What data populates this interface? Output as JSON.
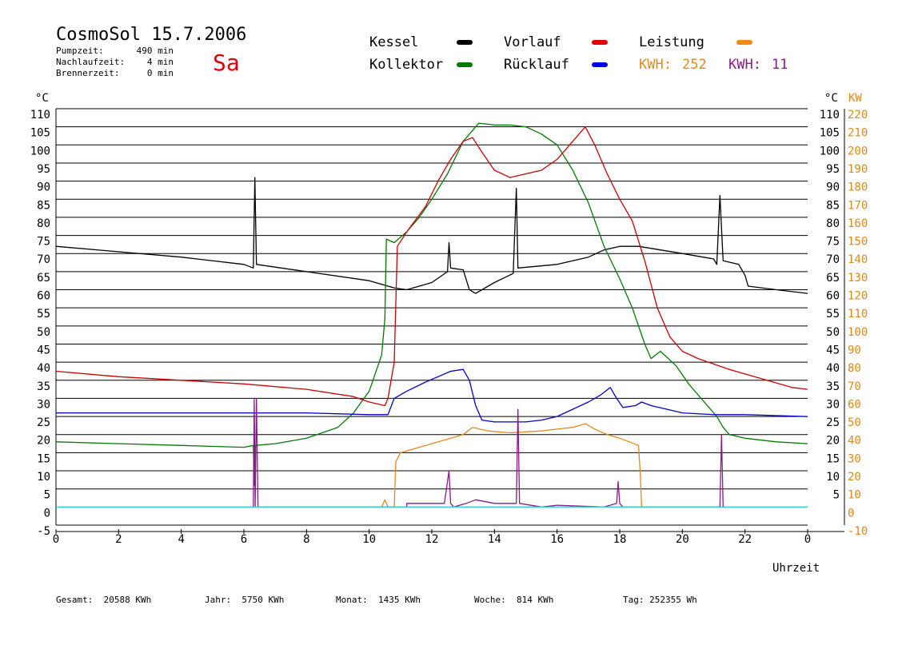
{
  "header": {
    "title": "CosmoSol 15.7.2006",
    "day": "Sa",
    "pumpzeit_label": "Pumpzeit:",
    "pumpzeit_value": "490 min",
    "nachlauf_label": "Nachlaufzeit:",
    "nachlauf_value": "4 min",
    "brenner_label": "Brennerzeit:",
    "brenner_value": "0 min"
  },
  "legend": {
    "kessel": "Kessel",
    "kollektor": "Kollektor",
    "vorlauf": "Vorlauf",
    "ruecklauf": "Rücklauf",
    "leistung": "Leistung",
    "kwh_orange_label": "KWH:",
    "kwh_orange_value": "252",
    "kwh_purple_label": "KWH:",
    "kwh_purple_value": "11"
  },
  "colors": {
    "kessel": "#000000",
    "kollektor": "#007a00",
    "vorlauf": "#cc0000",
    "ruecklauf": "#0000cc",
    "leistung": "#e08a1e",
    "purple": "#8a1a8a",
    "cyan": "#38d0d0"
  },
  "axes": {
    "left_unit": "°C",
    "right_unit_c": "°C",
    "right_unit_kw": "KW",
    "xlabel": "Uhrzeit",
    "y_ticks": [
      "110",
      "105",
      "100",
      "95",
      "90",
      "85",
      "80",
      "75",
      "70",
      "65",
      "60",
      "55",
      "50",
      "45",
      "40",
      "35",
      "30",
      "25",
      "20",
      "15",
      "10",
      "5",
      "0",
      "-5"
    ],
    "kw_ticks": [
      "220",
      "210",
      "200",
      "190",
      "180",
      "170",
      "160",
      "150",
      "140",
      "130",
      "120",
      "110",
      "100",
      "90",
      "80",
      "70",
      "60",
      "50",
      "40",
      "30",
      "20",
      "10",
      "0",
      "-10"
    ],
    "x_ticks": [
      "0",
      "2",
      "4",
      "6",
      "8",
      "10",
      "12",
      "14",
      "16",
      "18",
      "20",
      "22",
      "0"
    ]
  },
  "footer": {
    "gesamt": "Gesamt:  20588 KWh",
    "jahr": "Jahr:  5750 KWh",
    "monat": "Monat:  1435 KWh",
    "woche": "Woche:  814 KWh",
    "tag": "Tag: 252355 Wh"
  },
  "chart_data": {
    "type": "line",
    "xlabel": "Uhrzeit",
    "ylabel": "°C",
    "ylabel_right": "KW",
    "xlim": [
      0,
      24
    ],
    "ylim": [
      -5,
      110
    ],
    "ylim_right": [
      -10,
      220
    ],
    "grid": true,
    "series": [
      {
        "name": "Kessel",
        "color": "#000000",
        "axis": "left",
        "points": [
          [
            0,
            72
          ],
          [
            2,
            70.5
          ],
          [
            4,
            69
          ],
          [
            6,
            67
          ],
          [
            6.3,
            66
          ],
          [
            6.35,
            91
          ],
          [
            6.4,
            67
          ],
          [
            8,
            65
          ],
          [
            10,
            62.5
          ],
          [
            10.8,
            60.5
          ],
          [
            11.2,
            60
          ],
          [
            12,
            62
          ],
          [
            12.5,
            65
          ],
          [
            12.55,
            73
          ],
          [
            12.6,
            66
          ],
          [
            13,
            65.5
          ],
          [
            13.2,
            60
          ],
          [
            13.4,
            59
          ],
          [
            14,
            62
          ],
          [
            14.6,
            64.5
          ],
          [
            14.7,
            88
          ],
          [
            14.75,
            66
          ],
          [
            16,
            67
          ],
          [
            17,
            69
          ],
          [
            17.5,
            71
          ],
          [
            18,
            72
          ],
          [
            18.6,
            72
          ],
          [
            20,
            70
          ],
          [
            21,
            68.5
          ],
          [
            21.1,
            67
          ],
          [
            21.2,
            86
          ],
          [
            21.3,
            68
          ],
          [
            21.8,
            67
          ],
          [
            22,
            64
          ],
          [
            22.1,
            61
          ],
          [
            23,
            60
          ],
          [
            24,
            59
          ]
        ]
      },
      {
        "name": "Kollektor",
        "color": "#007a00",
        "axis": "left",
        "points": [
          [
            0,
            18
          ],
          [
            2,
            17.5
          ],
          [
            4,
            17
          ],
          [
            6,
            16.5
          ],
          [
            6.3,
            17
          ],
          [
            6.33,
            6
          ],
          [
            6.36,
            17
          ],
          [
            7,
            17.5
          ],
          [
            8,
            19
          ],
          [
            9,
            22
          ],
          [
            9.5,
            26
          ],
          [
            10,
            32
          ],
          [
            10.4,
            42
          ],
          [
            10.5,
            52
          ],
          [
            10.55,
            74
          ],
          [
            10.8,
            73
          ],
          [
            11.2,
            76
          ],
          [
            11.6,
            80
          ],
          [
            12,
            85
          ],
          [
            12.5,
            92
          ],
          [
            13,
            101
          ],
          [
            13.5,
            106
          ],
          [
            14,
            105.5
          ],
          [
            14.5,
            105.5
          ],
          [
            15,
            105
          ],
          [
            15.5,
            103
          ],
          [
            16,
            100
          ],
          [
            16.5,
            93
          ],
          [
            17,
            84
          ],
          [
            17.5,
            72
          ],
          [
            18,
            63
          ],
          [
            18.4,
            55
          ],
          [
            18.8,
            45
          ],
          [
            19,
            41
          ],
          [
            19.3,
            43
          ],
          [
            19.8,
            39
          ],
          [
            20.2,
            34
          ],
          [
            20.7,
            29
          ],
          [
            21.1,
            25
          ],
          [
            21.3,
            22
          ],
          [
            21.5,
            20
          ],
          [
            22,
            19
          ],
          [
            23,
            18
          ],
          [
            24,
            17.5
          ]
        ]
      },
      {
        "name": "Vorlauf",
        "color": "#cc0000",
        "axis": "left",
        "points": [
          [
            0,
            37.5
          ],
          [
            2,
            36
          ],
          [
            4,
            35
          ],
          [
            6,
            34
          ],
          [
            8,
            32.5
          ],
          [
            9.5,
            30.5
          ],
          [
            10,
            29
          ],
          [
            10.5,
            28
          ],
          [
            10.6,
            30
          ],
          [
            10.8,
            40
          ],
          [
            10.9,
            72
          ],
          [
            11.2,
            76
          ],
          [
            11.8,
            83
          ],
          [
            12.2,
            90
          ],
          [
            12.6,
            96
          ],
          [
            13,
            101
          ],
          [
            13.3,
            102
          ],
          [
            13.6,
            98
          ],
          [
            14,
            93
          ],
          [
            14.5,
            91
          ],
          [
            15,
            92
          ],
          [
            15.5,
            93
          ],
          [
            16,
            96
          ],
          [
            16.5,
            101
          ],
          [
            16.9,
            105
          ],
          [
            17.2,
            100
          ],
          [
            17.6,
            92
          ],
          [
            18,
            85
          ],
          [
            18.4,
            79
          ],
          [
            18.8,
            68
          ],
          [
            19.2,
            55
          ],
          [
            19.6,
            47
          ],
          [
            20,
            43
          ],
          [
            20.5,
            41
          ],
          [
            21.5,
            38
          ],
          [
            22.5,
            35.5
          ],
          [
            23.5,
            33
          ],
          [
            24,
            32.5
          ]
        ]
      },
      {
        "name": "Rücklauf",
        "color": "#0000cc",
        "axis": "left",
        "points": [
          [
            0,
            26
          ],
          [
            3,
            26
          ],
          [
            6,
            26
          ],
          [
            8,
            26
          ],
          [
            10,
            25.5
          ],
          [
            10.6,
            25.5
          ],
          [
            10.8,
            30
          ],
          [
            11.2,
            32
          ],
          [
            11.8,
            34.5
          ],
          [
            12.2,
            36
          ],
          [
            12.6,
            37.5
          ],
          [
            13,
            38
          ],
          [
            13.2,
            35
          ],
          [
            13.4,
            28
          ],
          [
            13.6,
            24
          ],
          [
            14,
            23.5
          ],
          [
            15,
            23.5
          ],
          [
            15.5,
            24
          ],
          [
            16,
            25
          ],
          [
            16.5,
            27
          ],
          [
            17,
            29
          ],
          [
            17.4,
            31
          ],
          [
            17.7,
            33
          ],
          [
            17.9,
            30
          ],
          [
            18.1,
            27.5
          ],
          [
            18.5,
            28
          ],
          [
            18.7,
            29
          ],
          [
            19,
            28
          ],
          [
            19.5,
            27
          ],
          [
            20,
            26
          ],
          [
            21,
            25.5
          ],
          [
            22,
            25.5
          ],
          [
            24,
            25
          ]
        ]
      },
      {
        "name": "Leistung",
        "color": "#e08a1e",
        "axis": "right",
        "points": [
          [
            10.4,
            0
          ],
          [
            10.5,
            4
          ],
          [
            10.6,
            0
          ],
          [
            10.8,
            0
          ],
          [
            10.85,
            25
          ],
          [
            11,
            30
          ],
          [
            12,
            35
          ],
          [
            13,
            40
          ],
          [
            13.3,
            44
          ],
          [
            13.8,
            42
          ],
          [
            14.5,
            41
          ],
          [
            15,
            41.5
          ],
          [
            15.5,
            42
          ],
          [
            16,
            43
          ],
          [
            16.5,
            44
          ],
          [
            16.9,
            46
          ],
          [
            17.2,
            43
          ],
          [
            17.6,
            40
          ],
          [
            18,
            38
          ],
          [
            18.6,
            34
          ],
          [
            18.65,
            20
          ],
          [
            18.7,
            0
          ]
        ]
      },
      {
        "name": "KWH Lila",
        "color": "#8a1a8a",
        "axis": "right",
        "points": [
          [
            6.3,
            0
          ],
          [
            6.33,
            60
          ],
          [
            6.36,
            0
          ],
          [
            6.4,
            60
          ],
          [
            6.45,
            0
          ],
          [
            11.2,
            0
          ],
          [
            11.2,
            2
          ],
          [
            12.4,
            2
          ],
          [
            12.55,
            20
          ],
          [
            12.6,
            2
          ],
          [
            12.7,
            0
          ],
          [
            13.1,
            2
          ],
          [
            13.4,
            4
          ],
          [
            14,
            2
          ],
          [
            14.7,
            2
          ],
          [
            14.75,
            54
          ],
          [
            14.8,
            2
          ],
          [
            15.5,
            0
          ],
          [
            16,
            1
          ],
          [
            17.5,
            0
          ],
          [
            17.9,
            2
          ],
          [
            17.95,
            14
          ],
          [
            18,
            2
          ],
          [
            18.1,
            0
          ],
          [
            21.2,
            0
          ],
          [
            21.25,
            40
          ],
          [
            21.3,
            0
          ]
        ]
      },
      {
        "name": "Basislinie",
        "color": "#38d0d0",
        "axis": "left",
        "points": [
          [
            0,
            0
          ],
          [
            24,
            0
          ]
        ]
      }
    ]
  }
}
